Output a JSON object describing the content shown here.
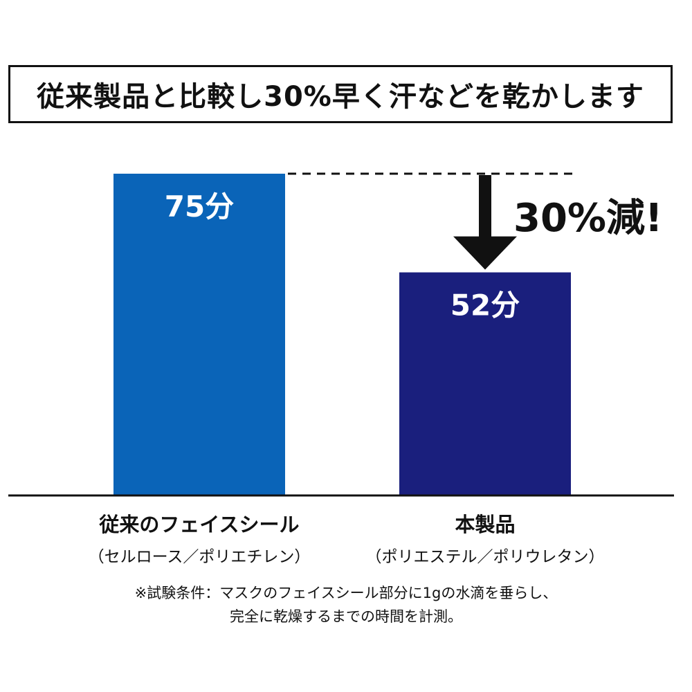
{
  "chart_data": {
    "type": "bar",
    "title": "従来製品と比較し30%早く汗などを乾かします",
    "categories": [
      "従来のフェイスシール",
      "本製品"
    ],
    "category_subtitles": [
      "（セルロース／ポリエチレン）",
      "（ポリエステル／ポリウレタン）"
    ],
    "values": [
      75,
      52
    ],
    "value_labels": [
      "75分",
      "52分"
    ],
    "bar_colors": [
      "#0a64b8",
      "#1a1f7d"
    ],
    "ylim": [
      0,
      75
    ],
    "grid": false,
    "annotation": {
      "text": "30%減!",
      "color": "#111111"
    },
    "note": [
      "※試験条件：マスクのフェイスシール部分に1gの水滴を垂らし、",
      "完全に乾燥するまでの時間を計測。"
    ]
  }
}
